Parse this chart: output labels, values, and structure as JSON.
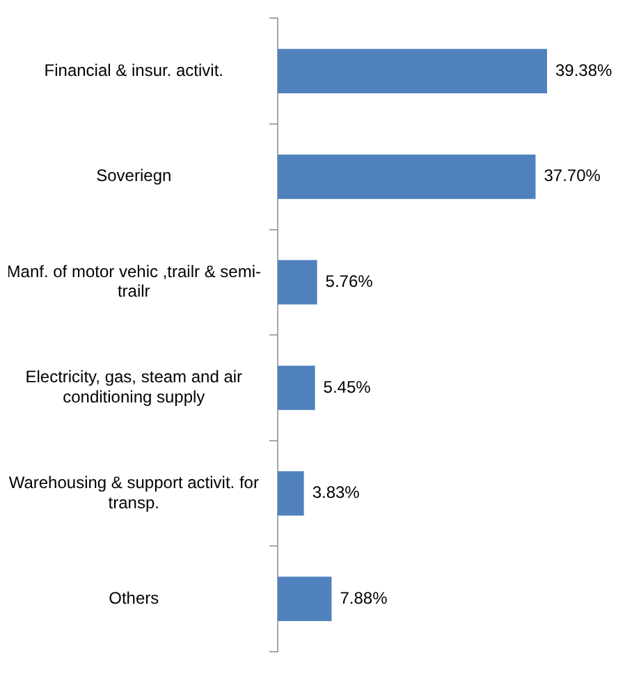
{
  "chart_data": {
    "type": "bar",
    "orientation": "horizontal",
    "categories": [
      "Financial & insur. activit.",
      "Soveriegn",
      "Manf. of motor vehic ,trailr & semi-trailr",
      "Electricity, gas, steam and air conditioning supply",
      "Warehousing & support activit. for transp.",
      "Others"
    ],
    "values": [
      39.38,
      37.7,
      5.76,
      5.45,
      3.83,
      7.88
    ],
    "value_labels": [
      "39.38%",
      "37.70%",
      "5.76%",
      "5.45%",
      "3.83%",
      "7.88%"
    ],
    "color": "#4f81bd",
    "legend": false
  }
}
